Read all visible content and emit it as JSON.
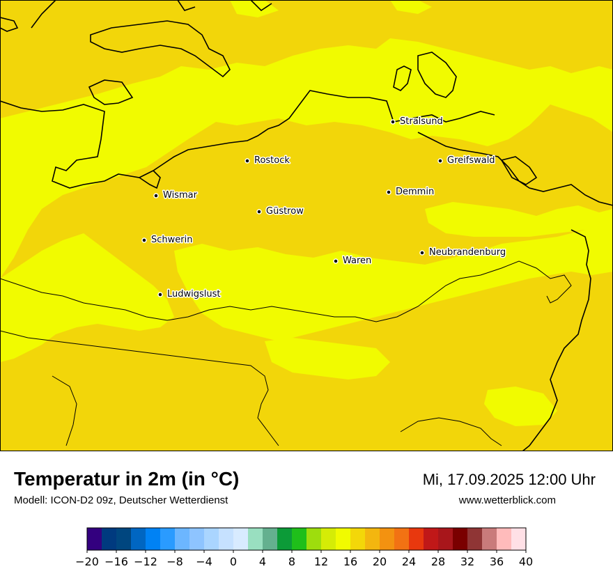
{
  "title": "Temperatur in 2m (in °C)",
  "model": "Modell: ICON-D2 09z, Deutscher Wetterdienst",
  "datetime": "Mi, 17.09.2025 12:00 Uhr",
  "website": "www.wetterblick.com",
  "cities": [
    {
      "name": "Stralsund"
    },
    {
      "name": "Rostock"
    },
    {
      "name": "Greifswald"
    },
    {
      "name": "Wismar"
    },
    {
      "name": "Demmin"
    },
    {
      "name": "Güstrow"
    },
    {
      "name": "Schwerin"
    },
    {
      "name": "Neubrandenburg"
    },
    {
      "name": "Waren"
    },
    {
      "name": "Ludwigslust"
    }
  ],
  "map_colors": {
    "warm_18_20": "#f2d60a",
    "mild_16_18": "#f1fb00"
  },
  "colorbar": {
    "min": -20,
    "max": 40,
    "step": 2,
    "tick_labels": [
      "−20",
      "−16",
      "−12",
      "−8",
      "−4",
      "0",
      "4",
      "8",
      "12",
      "16",
      "20",
      "24",
      "28",
      "32",
      "36",
      "40"
    ],
    "colors": [
      "#33007f",
      "#003a7f",
      "#00467f",
      "#0066c2",
      "#0082f4",
      "#2a9bff",
      "#6cb6ff",
      "#8ec4ff",
      "#aad5ff",
      "#c6e1ff",
      "#d8ebff",
      "#99dfc0",
      "#64b08f",
      "#0c9b38",
      "#1fbf1a",
      "#9edd0d",
      "#d5ec06",
      "#f1fb00",
      "#f3d709",
      "#f3b60f",
      "#f39210",
      "#f27213",
      "#e8380e",
      "#c01818",
      "#a8161b",
      "#7a0000",
      "#8f3535",
      "#c97b7b",
      "#ffbbbb",
      "#ffe0e6"
    ]
  }
}
